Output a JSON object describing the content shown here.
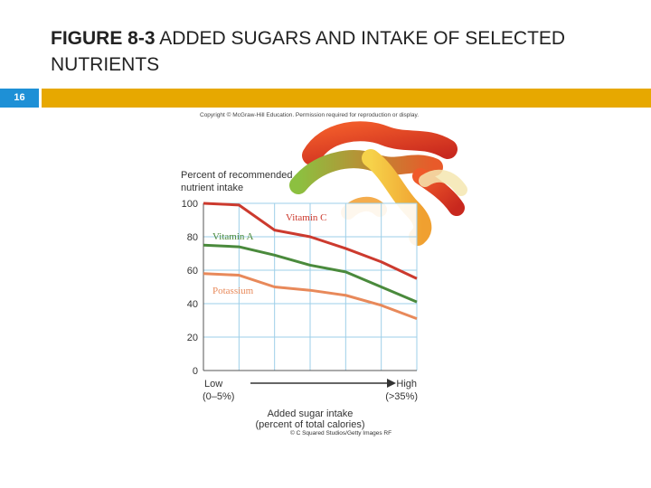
{
  "slide": {
    "title_bold": "FIGURE 8-3",
    "title_rest": " ADDED SUGARS AND INTAKE OF SELECTED NUTRIENTS",
    "number": "16",
    "copyright": "Copyright © McGraw-Hill Education. Permission required for reproduction or display.",
    "photo_credit": "© C Squared Studios/Getty Images RF"
  },
  "colors": {
    "accent_bar": "#e7a800",
    "slide_number_bg": "#1e90d6",
    "vitamin_c": "#cc3a2e",
    "vitamin_a": "#4a8a3c",
    "potassium": "#e8895a",
    "grid": "#9ecfe8",
    "plot_bg": "#ffffff"
  },
  "chart_data": {
    "type": "line",
    "ylabel_line1": "Percent of recommended",
    "ylabel_line2": "nutrient intake",
    "xlabel_line1": "Added sugar intake",
    "xlabel_line2": "(percent of total calories)",
    "x_low_label": "Low",
    "x_low_range": "(0–5%)",
    "x_high_label": "High",
    "x_high_range": "(>35%)",
    "ylim": [
      0,
      100
    ],
    "yticks": [
      "0",
      "20",
      "40",
      "60",
      "80",
      "100"
    ],
    "grid": true,
    "x": [
      0,
      1,
      2,
      3,
      4,
      5,
      6
    ],
    "series": [
      {
        "name": "Vitamin C",
        "values": [
          100,
          99,
          84,
          80,
          73,
          65,
          55
        ]
      },
      {
        "name": "Vitamin A",
        "values": [
          75,
          74,
          69,
          63,
          59,
          50,
          41
        ]
      },
      {
        "name": "Potassium",
        "values": [
          58,
          57,
          50,
          48,
          45,
          39,
          31
        ]
      }
    ]
  }
}
